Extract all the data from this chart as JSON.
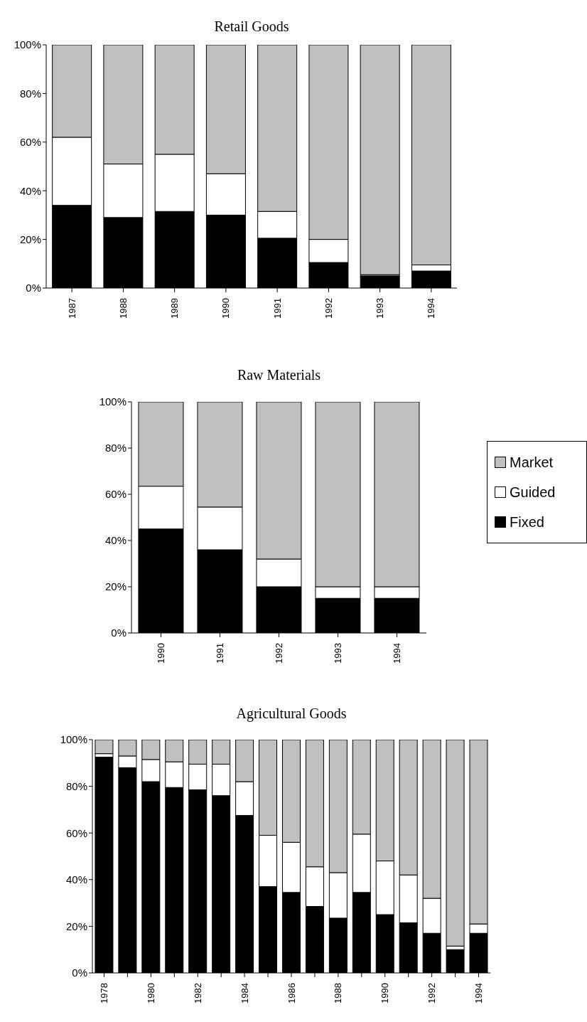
{
  "chart_data": [
    {
      "type": "bar",
      "title": "Retail Goods",
      "stacked": true,
      "categories": [
        "1987",
        "1988",
        "1989",
        "1990",
        "1991",
        "1992",
        "1993",
        "1994"
      ],
      "series": [
        {
          "color": "#000000",
          "values": [
            34,
            29,
            31.5,
            30,
            20.5,
            10.5,
            5,
            7
          ]
        },
        {
          "color": "#ffffff",
          "values": [
            28,
            22,
            23.5,
            17,
            11,
            9.5,
            0.5,
            2.5
          ]
        },
        {
          "color": "#c0c0c0",
          "values": [
            38,
            49,
            45,
            53,
            68.5,
            80,
            94.5,
            90.5
          ]
        }
      ],
      "ylim": [
        0,
        100
      ],
      "yticks": [
        {
          "value": 0,
          "label": "0%"
        },
        {
          "value": 20,
          "label": "20%"
        },
        {
          "value": 40,
          "label": "40%"
        },
        {
          "value": 60,
          "label": "60%"
        },
        {
          "value": 80,
          "label": "80%"
        },
        {
          "value": 100,
          "label": "100%"
        }
      ],
      "grid": false
    },
    {
      "type": "bar",
      "title": "Raw Materials",
      "stacked": true,
      "categories": [
        "1990",
        "1991",
        "1992",
        "1993",
        "1994"
      ],
      "series": [
        {
          "name": "Fixed",
          "color": "#000000",
          "values": [
            45,
            36,
            20,
            15,
            15
          ]
        },
        {
          "name": "Guided",
          "color": "#ffffff",
          "values": [
            18.5,
            18.5,
            12,
            5,
            5
          ]
        },
        {
          "name": "Market",
          "color": "#c0c0c0",
          "values": [
            36.5,
            45.5,
            68,
            80,
            80
          ]
        }
      ],
      "ylim": [
        0,
        100
      ],
      "yticks": [
        {
          "value": 0,
          "label": "0%"
        },
        {
          "value": 20,
          "label": "20%"
        },
        {
          "value": 40,
          "label": "40%"
        },
        {
          "value": 60,
          "label": "60%"
        },
        {
          "value": 80,
          "label": "80%"
        },
        {
          "value": 100,
          "label": "100%"
        }
      ],
      "grid": false,
      "legend": "right"
    },
    {
      "type": "bar",
      "title": "Agricultural Goods",
      "stacked": true,
      "categories": [
        "1978",
        null,
        "1980",
        null,
        "1982",
        null,
        "1984",
        null,
        "1986",
        null,
        "1988",
        null,
        "1990",
        null,
        "1992",
        null,
        "1994"
      ],
      "series": [
        {
          "color": "#000000",
          "values": [
            92.5,
            88,
            82,
            79.5,
            78.5,
            76,
            67.5,
            37,
            34.5,
            28.5,
            23.5,
            34.5,
            25,
            21.5,
            17,
            10,
            17
          ]
        },
        {
          "color": "#ffffff",
          "values": [
            1.5,
            5,
            9.5,
            11,
            11,
            13.5,
            14.5,
            22,
            21.5,
            17,
            19.5,
            25,
            23,
            20.5,
            15,
            1.5,
            4
          ]
        },
        {
          "color": "#c0c0c0",
          "values": [
            6,
            7,
            8.5,
            9.5,
            10.5,
            10.5,
            18,
            41,
            44,
            54.5,
            57,
            40.5,
            52,
            58,
            68,
            88.5,
            79
          ]
        }
      ],
      "ylim": [
        0,
        100
      ],
      "yticks": [
        {
          "value": 0,
          "label": "0%"
        },
        {
          "value": 20,
          "label": "20%"
        },
        {
          "value": 40,
          "label": "40%"
        },
        {
          "value": 60,
          "label": "60%"
        },
        {
          "value": 80,
          "label": "80%"
        },
        {
          "value": 100,
          "label": "100%"
        }
      ],
      "grid": false
    }
  ]
}
